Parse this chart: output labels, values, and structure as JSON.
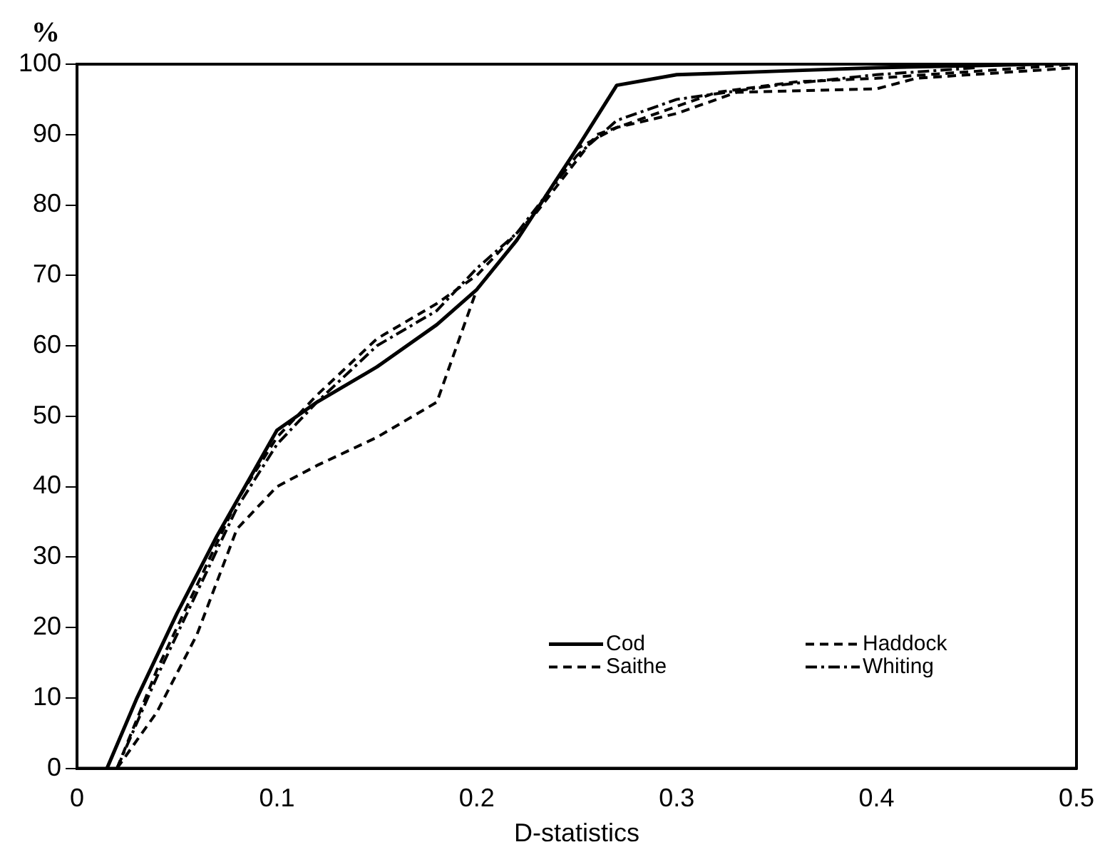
{
  "chart_data": {
    "type": "line",
    "xlabel": "D-statistics",
    "ylabel": "%",
    "xlim": [
      0,
      0.5
    ],
    "xticks": [
      0,
      0.1,
      0.2,
      0.3,
      0.4,
      0.5
    ],
    "ylim": [
      0,
      100
    ],
    "yticks": [
      0,
      10,
      20,
      30,
      40,
      50,
      60,
      70,
      80,
      90,
      100
    ],
    "grid": false,
    "legend": "bottom right",
    "marker": "none",
    "series": [
      {
        "name": "Cod",
        "color": "#000000",
        "line_style": "solid",
        "x": [
          0.015,
          0.03,
          0.05,
          0.07,
          0.09,
          0.1,
          0.12,
          0.15,
          0.18,
          0.2,
          0.22,
          0.25,
          0.27,
          0.3,
          0.35,
          0.4,
          0.45,
          0.48
        ],
        "values": [
          0,
          10,
          22,
          33,
          43,
          48,
          52,
          57,
          63,
          68,
          75,
          88,
          97,
          98.5,
          99,
          99.5,
          99.8,
          100
        ]
      },
      {
        "name": "Haddock",
        "color": "#000000",
        "line_style": "dashed",
        "x": [
          0.02,
          0.04,
          0.06,
          0.08,
          0.1,
          0.12,
          0.15,
          0.18,
          0.2,
          0.23,
          0.26,
          0.28,
          0.32,
          0.36,
          0.4,
          0.45,
          0.5
        ],
        "values": [
          0,
          14,
          26,
          38,
          47,
          53,
          61,
          66,
          70,
          79,
          90,
          92,
          96,
          97.5,
          98,
          99,
          100
        ]
      },
      {
        "name": "Saithe",
        "color": "#000000",
        "line_style": "dashed",
        "x": [
          0.02,
          0.04,
          0.06,
          0.08,
          0.1,
          0.12,
          0.15,
          0.18,
          0.2,
          0.22,
          0.25,
          0.27,
          0.3,
          0.33,
          0.4,
          0.42,
          0.5
        ],
        "values": [
          0,
          8,
          19,
          34,
          40,
          43,
          47,
          52,
          68,
          75,
          88,
          91,
          93,
          96,
          96.5,
          98,
          99.5
        ]
      },
      {
        "name": "Whiting",
        "color": "#000000",
        "line_style": "dashdot",
        "x": [
          0.02,
          0.04,
          0.06,
          0.08,
          0.1,
          0.12,
          0.15,
          0.18,
          0.2,
          0.22,
          0.25,
          0.27,
          0.3,
          0.35,
          0.4,
          0.45
        ],
        "values": [
          0,
          13,
          25,
          37,
          46,
          52,
          60,
          65,
          71,
          76,
          87,
          92,
          95,
          97,
          98.5,
          99.5
        ]
      }
    ]
  }
}
